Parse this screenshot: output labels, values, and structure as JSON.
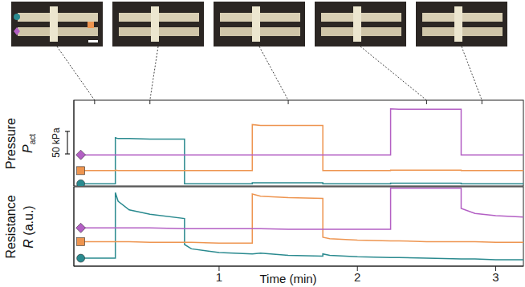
{
  "chart_data": [
    {
      "type": "line",
      "ylabel": "Pressure",
      "ylabel_symbol": {
        "text": "P",
        "subscript": "act"
      },
      "scale_bar": {
        "value": 50,
        "label": "50 kPa"
      },
      "snapshot_times": [
        0.1,
        0.5,
        1.5,
        2.5,
        2.9
      ],
      "tick_labels": false,
      "grid": false,
      "x": [
        0,
        0.25,
        0.25,
        0.27,
        0.35,
        0.5,
        0.75,
        0.75,
        0.8,
        1.0,
        1.24,
        1.24,
        1.3,
        1.5,
        1.75,
        1.75,
        1.8,
        2.0,
        2.24,
        2.24,
        2.3,
        2.5,
        2.75,
        2.75,
        2.85,
        3.0,
        3.2
      ],
      "xlim": [
        -0.05,
        3.2
      ],
      "ylim": [
        -5,
        185
      ],
      "series": [
        {
          "color": "#2a8a8f",
          "marker": "circle",
          "values": [
            0,
            0,
            102,
            100,
            100,
            99,
            99,
            0,
            0,
            0,
            0,
            2,
            2,
            2,
            2,
            0,
            0,
            0,
            0,
            1,
            1,
            1,
            1,
            0,
            0,
            0,
            0
          ]
        },
        {
          "color": "#ee9550",
          "marker": "square",
          "values": [
            29,
            29,
            30,
            29,
            29,
            29,
            29,
            29,
            29,
            29,
            29,
            131,
            129,
            129,
            129,
            29,
            29,
            29,
            29,
            30,
            30,
            30,
            30,
            29,
            29,
            29,
            29
          ]
        },
        {
          "color": "#b35fc4",
          "marker": "diamond",
          "values": [
            64,
            64,
            64,
            64,
            64,
            64,
            64,
            64,
            64,
            64,
            64,
            64,
            64,
            64,
            64,
            64,
            64,
            64,
            64,
            166,
            165,
            165,
            165,
            64,
            64,
            64,
            64
          ]
        }
      ]
    },
    {
      "type": "line",
      "ylabel": "Resistance",
      "ylabel_symbol": {
        "text": "R",
        "unit": "(a.u.)"
      },
      "xlabel": "Time (min)",
      "tick_labels": "x",
      "grid": false,
      "x": [
        0,
        0.25,
        0.25,
        0.27,
        0.35,
        0.5,
        0.75,
        0.75,
        0.8,
        1.0,
        1.24,
        1.24,
        1.3,
        1.5,
        1.75,
        1.75,
        1.8,
        2.0,
        2.24,
        2.24,
        2.3,
        2.5,
        2.75,
        2.75,
        2.85,
        3.0,
        3.2
      ],
      "xlim": [
        -0.05,
        3.2
      ],
      "xticks": [
        1,
        2,
        3
      ],
      "ylim": [
        0,
        110
      ],
      "series": [
        {
          "color": "#2a8a8f",
          "marker": "circle",
          "values": [
            11,
            11,
            102,
            90,
            78,
            72,
            66,
            30,
            24,
            19,
            17,
            17,
            18,
            15,
            14,
            17,
            15,
            13,
            12,
            12,
            12,
            11,
            10,
            10,
            10,
            9,
            9
          ]
        },
        {
          "color": "#ee9550",
          "marker": "square",
          "values": [
            34,
            34,
            34,
            34,
            34,
            33,
            33,
            33,
            33,
            32,
            32,
            100,
            97,
            95,
            94,
            40,
            38,
            36,
            35,
            35,
            35,
            34,
            34,
            34,
            34,
            33,
            33
          ]
        },
        {
          "color": "#b35fc4",
          "marker": "diamond",
          "values": [
            53,
            53,
            53,
            53,
            53,
            53,
            52,
            52,
            52,
            52,
            52,
            52,
            52,
            51,
            51,
            51,
            51,
            51,
            51,
            108,
            108,
            108,
            108,
            80,
            73,
            70,
            68
          ]
        }
      ]
    }
  ]
}
